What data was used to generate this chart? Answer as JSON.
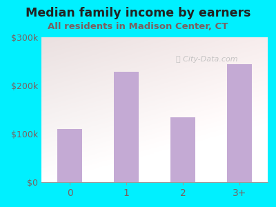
{
  "title": "Median family income by earners",
  "subtitle": "All residents in Madison Center, CT",
  "categories": [
    "0",
    "1",
    "2",
    "3+"
  ],
  "values": [
    110000,
    228000,
    135000,
    245000
  ],
  "bar_color": "#c4aad4",
  "ylim": [
    0,
    300000
  ],
  "yticks": [
    0,
    100000,
    200000,
    300000
  ],
  "ytick_labels": [
    "$0",
    "$100k",
    "$200k",
    "$300k"
  ],
  "fig_bg_color": "#00f0ff",
  "title_color": "#222222",
  "subtitle_color": "#7a6060",
  "tick_color": "#7a6060",
  "watermark": "City-Data.com",
  "title_fontsize": 12.5,
  "subtitle_fontsize": 9.5,
  "bar_width": 0.45
}
